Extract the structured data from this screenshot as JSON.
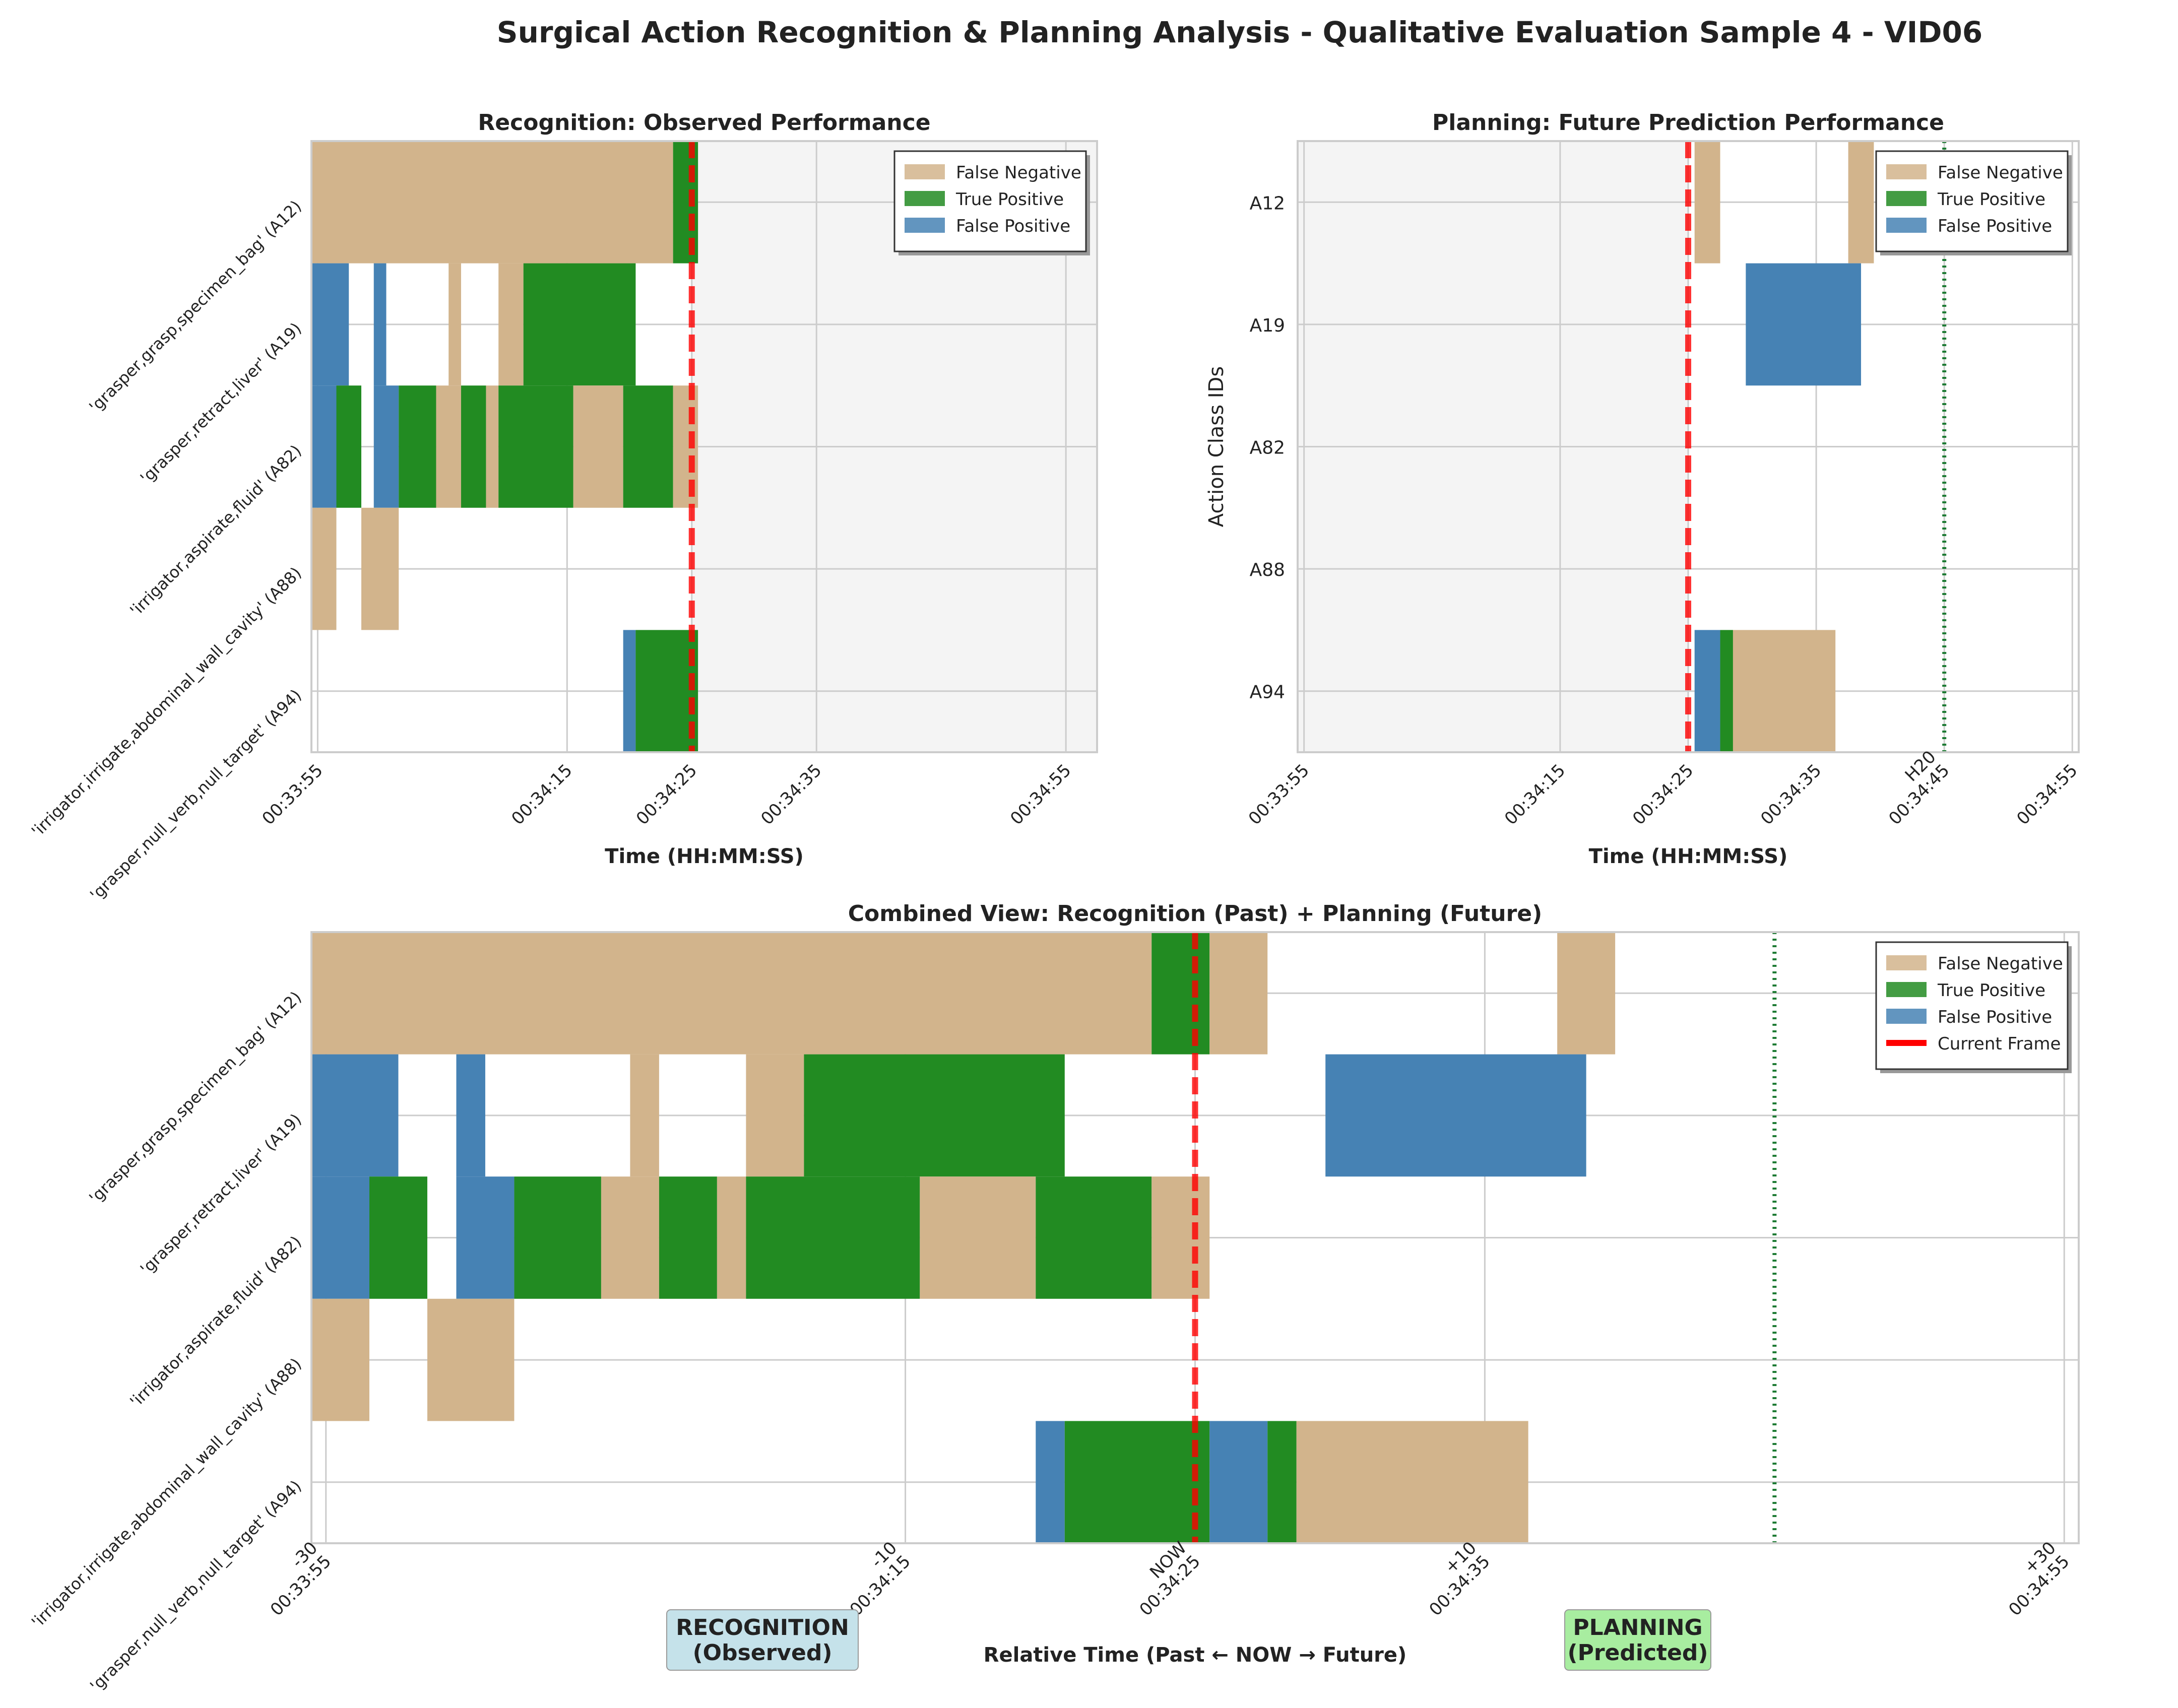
{
  "figure": {
    "title": "Surgical Action Recognition & Planning Analysis - Qualitative Evaluation Sample 4 - VID06"
  },
  "colors": {
    "false_negative": "#D2B48C",
    "true_positive": "#228B22",
    "false_positive": "#4682B4",
    "current_frame": "#FF0000",
    "horizon": "#1E7B34",
    "unobserved_bg": "#F4F4F4",
    "recognition_box": "#C5E2EA",
    "planning_box": "#A8EDA0"
  },
  "legend": {
    "false_negative": "False Negative",
    "true_positive": "True Positive",
    "false_positive": "False Positive",
    "current_frame": "Current Frame"
  },
  "chart_data": [
    {
      "id": "recognition",
      "type": "gantt",
      "title": "Recognition: Observed Performance",
      "xlabel": "Time (HH:MM:SS)",
      "ylabel": "",
      "xlim": [
        -30.5,
        32.5
      ],
      "xticks": [
        {
          "x": -30,
          "label": "00:33:55"
        },
        {
          "x": -10,
          "label": "00:34:15"
        },
        {
          "x": 0,
          "label": "00:34:25"
        },
        {
          "x": 10,
          "label": "00:34:35"
        },
        {
          "x": 30,
          "label": "00:34:55"
        }
      ],
      "categories": [
        "'grasper,grasp,specimen_bag' (A12)",
        "'grasper,retract,liver' (A19)",
        "'irrigator,aspirate,fluid' (A82)",
        "'irrigator,irrigate,abdominal_wall_cavity' (A88)",
        "'grasper,null_verb,null_target' (A94)"
      ],
      "current_frame": 0,
      "shade_from": 0,
      "legend_position": "top-right",
      "grid": true,
      "segments": [
        {
          "row": 0,
          "start": -30.5,
          "end": -1.5,
          "kind": "FN"
        },
        {
          "row": 0,
          "start": -1.5,
          "end": 0.5,
          "kind": "TP"
        },
        {
          "row": 1,
          "start": -30.5,
          "end": -27.5,
          "kind": "FP"
        },
        {
          "row": 1,
          "start": -25.5,
          "end": -24.5,
          "kind": "FP"
        },
        {
          "row": 1,
          "start": -19.5,
          "end": -18.5,
          "kind": "FN"
        },
        {
          "row": 1,
          "start": -15.5,
          "end": -13.5,
          "kind": "FN"
        },
        {
          "row": 1,
          "start": -13.5,
          "end": -4.5,
          "kind": "TP"
        },
        {
          "row": 2,
          "start": -30.5,
          "end": -28.5,
          "kind": "FP"
        },
        {
          "row": 2,
          "start": -28.5,
          "end": -26.5,
          "kind": "TP"
        },
        {
          "row": 2,
          "start": -25.5,
          "end": -23.5,
          "kind": "FP"
        },
        {
          "row": 2,
          "start": -23.5,
          "end": -20.5,
          "kind": "TP"
        },
        {
          "row": 2,
          "start": -20.5,
          "end": -18.5,
          "kind": "FN"
        },
        {
          "row": 2,
          "start": -18.5,
          "end": -16.5,
          "kind": "TP"
        },
        {
          "row": 2,
          "start": -16.5,
          "end": -15.5,
          "kind": "FN"
        },
        {
          "row": 2,
          "start": -15.5,
          "end": -9.5,
          "kind": "TP"
        },
        {
          "row": 2,
          "start": -9.5,
          "end": -5.5,
          "kind": "FN"
        },
        {
          "row": 2,
          "start": -5.5,
          "end": -1.5,
          "kind": "TP"
        },
        {
          "row": 2,
          "start": -1.5,
          "end": 0.5,
          "kind": "FN"
        },
        {
          "row": 3,
          "start": -30.5,
          "end": -28.5,
          "kind": "FN"
        },
        {
          "row": 3,
          "start": -26.5,
          "end": -23.5,
          "kind": "FN"
        },
        {
          "row": 4,
          "start": -5.5,
          "end": -4.5,
          "kind": "FP"
        },
        {
          "row": 4,
          "start": -4.5,
          "end": 0.5,
          "kind": "TP"
        }
      ]
    },
    {
      "id": "planning",
      "type": "gantt",
      "title": "Planning: Future Prediction Performance",
      "xlabel": "Time (HH:MM:SS)",
      "ylabel": "Action Class IDs",
      "xlim": [
        -30.5,
        30.5
      ],
      "xticks": [
        {
          "x": -30,
          "label": "00:33:55"
        },
        {
          "x": -10,
          "label": "00:34:15"
        },
        {
          "x": 0,
          "label": "00:34:25"
        },
        {
          "x": 10,
          "label": "00:34:35"
        },
        {
          "x": 20,
          "label": "H20\n00:34:45"
        },
        {
          "x": 30,
          "label": "00:34:55"
        }
      ],
      "categories": [
        "A12",
        "A19",
        "A82",
        "A88",
        "A94"
      ],
      "current_frame": 0,
      "horizon": 20,
      "shade_to": 0,
      "legend_position": "top-right",
      "grid": true,
      "segments": [
        {
          "row": 0,
          "start": 0.5,
          "end": 2.5,
          "kind": "FN"
        },
        {
          "row": 0,
          "start": 12.5,
          "end": 14.5,
          "kind": "FN"
        },
        {
          "row": 1,
          "start": 4.5,
          "end": 13.5,
          "kind": "FP"
        },
        {
          "row": 4,
          "start": 0.5,
          "end": 2.5,
          "kind": "FP"
        },
        {
          "row": 4,
          "start": 2.5,
          "end": 3.5,
          "kind": "TP"
        },
        {
          "row": 4,
          "start": 3.5,
          "end": 11.5,
          "kind": "FN"
        }
      ]
    },
    {
      "id": "combined",
      "type": "gantt",
      "title": "Combined View: Recognition (Past) + Planning (Future)",
      "xlabel": "Relative Time (Past ← NOW → Future)",
      "ylabel": "",
      "xlim": [
        -30.5,
        30.5
      ],
      "xticks": [
        {
          "x": -30,
          "label": "-30\n00:33:55"
        },
        {
          "x": -10,
          "label": "-10\n00:34:15"
        },
        {
          "x": 0,
          "label": "NOW\n00:34:25"
        },
        {
          "x": 10,
          "label": "+10\n00:34:35"
        },
        {
          "x": 30,
          "label": "+30\n00:34:55"
        }
      ],
      "categories": [
        "'grasper,grasp,specimen_bag' (A12)",
        "'grasper,retract,liver' (A19)",
        "'irrigator,aspirate,fluid' (A82)",
        "'irrigator,irrigate,abdominal_wall_cavity' (A88)",
        "'grasper,null_verb,null_target' (A94)"
      ],
      "current_frame": 0,
      "horizon": 20,
      "legend_position": "top-right",
      "grid": true,
      "region_labels": {
        "past": "RECOGNITION\n(Observed)",
        "future": "PLANNING\n(Predicted)"
      },
      "segments": [
        {
          "row": 0,
          "start": -30.5,
          "end": -1.5,
          "kind": "FN"
        },
        {
          "row": 0,
          "start": -1.5,
          "end": 0.5,
          "kind": "TP"
        },
        {
          "row": 0,
          "start": 0.5,
          "end": 2.5,
          "kind": "FN"
        },
        {
          "row": 0,
          "start": 12.5,
          "end": 14.5,
          "kind": "FN"
        },
        {
          "row": 1,
          "start": -30.5,
          "end": -27.5,
          "kind": "FP"
        },
        {
          "row": 1,
          "start": -25.5,
          "end": -24.5,
          "kind": "FP"
        },
        {
          "row": 1,
          "start": -19.5,
          "end": -18.5,
          "kind": "FN"
        },
        {
          "row": 1,
          "start": -15.5,
          "end": -13.5,
          "kind": "FN"
        },
        {
          "row": 1,
          "start": -13.5,
          "end": -4.5,
          "kind": "TP"
        },
        {
          "row": 1,
          "start": 4.5,
          "end": 13.5,
          "kind": "FP"
        },
        {
          "row": 2,
          "start": -30.5,
          "end": -28.5,
          "kind": "FP"
        },
        {
          "row": 2,
          "start": -28.5,
          "end": -26.5,
          "kind": "TP"
        },
        {
          "row": 2,
          "start": -25.5,
          "end": -23.5,
          "kind": "FP"
        },
        {
          "row": 2,
          "start": -23.5,
          "end": -20.5,
          "kind": "TP"
        },
        {
          "row": 2,
          "start": -20.5,
          "end": -18.5,
          "kind": "FN"
        },
        {
          "row": 2,
          "start": -18.5,
          "end": -16.5,
          "kind": "TP"
        },
        {
          "row": 2,
          "start": -16.5,
          "end": -15.5,
          "kind": "FN"
        },
        {
          "row": 2,
          "start": -15.5,
          "end": -9.5,
          "kind": "TP"
        },
        {
          "row": 2,
          "start": -9.5,
          "end": -5.5,
          "kind": "FN"
        },
        {
          "row": 2,
          "start": -5.5,
          "end": -1.5,
          "kind": "TP"
        },
        {
          "row": 2,
          "start": -1.5,
          "end": 0.5,
          "kind": "FN"
        },
        {
          "row": 3,
          "start": -30.5,
          "end": -28.5,
          "kind": "FN"
        },
        {
          "row": 3,
          "start": -26.5,
          "end": -23.5,
          "kind": "FN"
        },
        {
          "row": 4,
          "start": -5.5,
          "end": -4.5,
          "kind": "FP"
        },
        {
          "row": 4,
          "start": -4.5,
          "end": 0.5,
          "kind": "TP"
        },
        {
          "row": 4,
          "start": 0.5,
          "end": 2.5,
          "kind": "FP"
        },
        {
          "row": 4,
          "start": 2.5,
          "end": 3.5,
          "kind": "TP"
        },
        {
          "row": 4,
          "start": 3.5,
          "end": 11.5,
          "kind": "FN"
        }
      ]
    }
  ]
}
